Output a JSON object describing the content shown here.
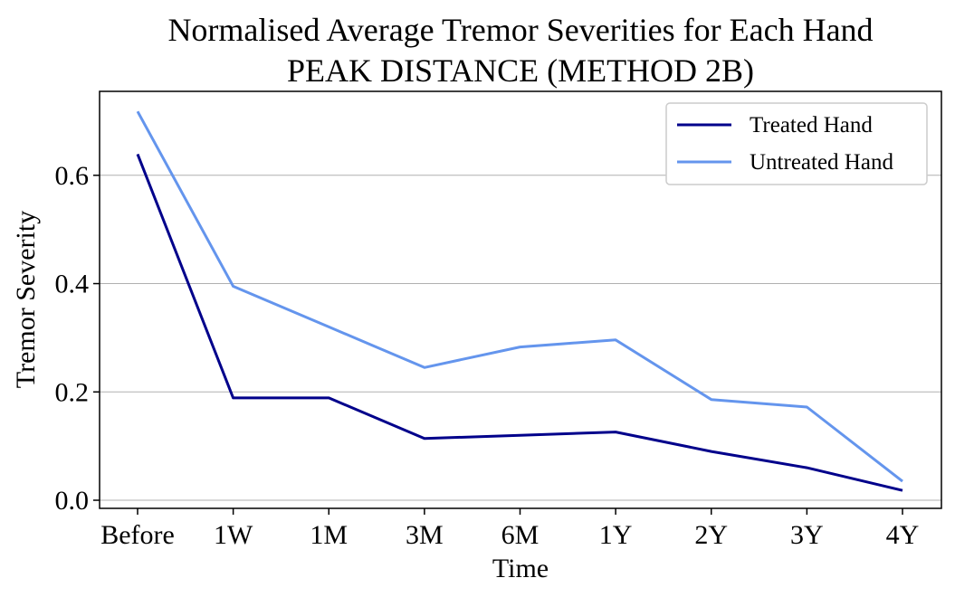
{
  "chart_data": {
    "type": "line",
    "title": "Normalised Average Tremor Severities for Each Hand",
    "subtitle": "PEAK DISTANCE (METHOD 2B)",
    "xlabel": "Time",
    "ylabel": "Tremor Severity",
    "categories": [
      "Before",
      "1W",
      "1M",
      "3M",
      "6M",
      "1Y",
      "2Y",
      "3Y",
      "4Y"
    ],
    "ylim": [
      -0.015,
      0.755
    ],
    "yticks": [
      0.0,
      0.2,
      0.4,
      0.6
    ],
    "ytick_labels": [
      "0.0",
      "0.2",
      "0.4",
      "0.6"
    ],
    "grid": "horizontal",
    "legend_position": "top-right",
    "series": [
      {
        "name": "Treated Hand",
        "color": "#00008b",
        "values": [
          0.639,
          0.189,
          0.189,
          0.114,
          0.12,
          0.126,
          0.09,
          0.06,
          0.018
        ]
      },
      {
        "name": "Untreated Hand",
        "color": "#6495ed",
        "values": [
          0.718,
          0.395,
          0.32,
          0.245,
          0.283,
          0.296,
          0.186,
          0.172,
          0.035
        ]
      }
    ]
  }
}
